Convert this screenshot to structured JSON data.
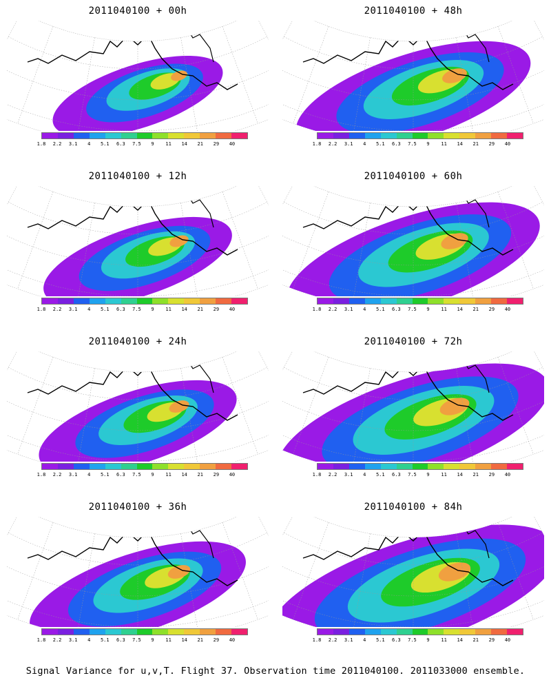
{
  "panels": [
    {
      "title": "2011040100 + 00h",
      "lead": "00h",
      "intensity": 0.35
    },
    {
      "title": "2011040100 + 48h",
      "lead": "48h",
      "intensity": 0.7
    },
    {
      "title": "2011040100 + 12h",
      "lead": "12h",
      "intensity": 0.45
    },
    {
      "title": "2011040100 + 60h",
      "lead": "60h",
      "intensity": 0.8
    },
    {
      "title": "2011040100 + 24h",
      "lead": "24h",
      "intensity": 0.5
    },
    {
      "title": "2011040100 + 72h",
      "lead": "72h",
      "intensity": 0.9
    },
    {
      "title": "2011040100 + 36h",
      "lead": "36h",
      "intensity": 0.6
    },
    {
      "title": "2011040100 + 84h",
      "lead": "84h",
      "intensity": 1.0
    }
  ],
  "colorbar": {
    "ticks": [
      "1.8",
      "2.2",
      "3.1",
      "4",
      "5.1",
      "6.3",
      "7.5",
      "9",
      "11",
      "14",
      "21",
      "29",
      "40"
    ],
    "colors": [
      "#9a1ae6",
      "#7a20e0",
      "#2060f0",
      "#1fa2ee",
      "#2bc8d2",
      "#2fd090",
      "#1ecb2a",
      "#8ee02a",
      "#d8e030",
      "#f0c838",
      "#f0a040",
      "#f06a40",
      "#f0206e"
    ]
  },
  "caption": "Signal Variance for u,v,T. Flight 37. Observation time 2011040100. 2011033000 ensemble."
}
